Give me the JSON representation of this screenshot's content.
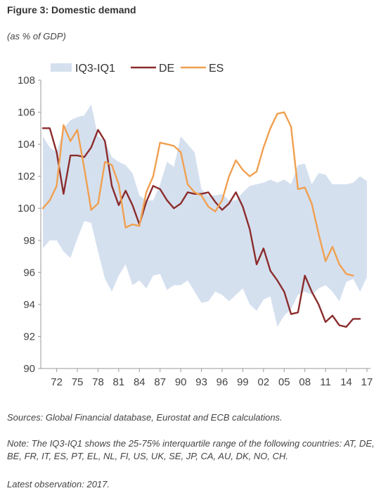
{
  "figure": {
    "title": "Figure 3: Domestic demand",
    "subtitle": "(as % of GDP)"
  },
  "notes": {
    "sources": "Sources: Global Financial database, Eurostat and ECB calculations.",
    "note": "Note: The IQ3-IQ1 shows the 25-75% interquartile range of the following countries: AT, DE, BE, FR, IT, ES, PT, EL, NL, FI, US, UK, SE, JP, CA, AU, DK, NO, CH.",
    "latest": "Latest observation: 2017."
  },
  "colors": {
    "band": "#d5e0ef",
    "de": "#8b2c2c",
    "es": "#f0a050",
    "axis": "#999999"
  },
  "chart_data": {
    "type": "line",
    "title": "",
    "xlabel": "",
    "ylabel": "",
    "ylim": [
      90,
      108
    ],
    "yticks": [
      90,
      92,
      94,
      96,
      98,
      100,
      102,
      104,
      106,
      108
    ],
    "xticks": [
      {
        "year": 1972,
        "label": "72"
      },
      {
        "year": 1975,
        "label": "75"
      },
      {
        "year": 1978,
        "label": "78"
      },
      {
        "year": 1981,
        "label": "81"
      },
      {
        "year": 1984,
        "label": "84"
      },
      {
        "year": 1987,
        "label": "87"
      },
      {
        "year": 1990,
        "label": "90"
      },
      {
        "year": 1993,
        "label": "93"
      },
      {
        "year": 1996,
        "label": "96"
      },
      {
        "year": 1999,
        "label": "99"
      },
      {
        "year": 2002,
        "label": "02"
      },
      {
        "year": 2005,
        "label": "05"
      },
      {
        "year": 2008,
        "label": "08"
      },
      {
        "year": 2011,
        "label": "11"
      },
      {
        "year": 2014,
        "label": "14"
      },
      {
        "year": 2017,
        "label": "17"
      }
    ],
    "grid": false,
    "legend": "top",
    "x": [
      1970,
      1971,
      1972,
      1973,
      1974,
      1975,
      1976,
      1977,
      1978,
      1979,
      1980,
      1981,
      1982,
      1983,
      1984,
      1985,
      1986,
      1987,
      1988,
      1989,
      1990,
      1991,
      1992,
      1993,
      1994,
      1995,
      1996,
      1997,
      1998,
      1999,
      2000,
      2001,
      2002,
      2003,
      2004,
      2005,
      2006,
      2007,
      2008,
      2009,
      2010,
      2011,
      2012,
      2013,
      2014,
      2015,
      2016,
      2017
    ],
    "band": {
      "name": "IQ3-IQ1",
      "upper": [
        104.5,
        103.8,
        103.5,
        105.0,
        105.5,
        105.7,
        105.8,
        106.5,
        104.5,
        104.2,
        103.2,
        102.9,
        102.7,
        102.2,
        100.8,
        100.5,
        100.5,
        101.5,
        102.9,
        102.6,
        104.5,
        104.0,
        103.5,
        101.2,
        100.8,
        100.8,
        100.9,
        100.5,
        100.5,
        101.0,
        101.4,
        101.5,
        101.6,
        101.8,
        101.6,
        101.8,
        101.5,
        102.7,
        102.8,
        101.5,
        102.2,
        102.1,
        101.5,
        101.5,
        101.5,
        101.6,
        102.0,
        101.7
      ],
      "lower": [
        97.5,
        98.0,
        98.0,
        97.3,
        96.9,
        98.1,
        99.2,
        99.1,
        97.3,
        95.6,
        94.8,
        95.8,
        96.5,
        95.2,
        95.5,
        95.0,
        95.8,
        95.9,
        94.9,
        95.2,
        95.2,
        95.5,
        94.8,
        94.1,
        94.2,
        94.8,
        94.6,
        94.2,
        94.6,
        95.0,
        94.0,
        93.6,
        94.3,
        94.5,
        92.6,
        93.3,
        93.7,
        94.6,
        94.8,
        94.6,
        95.0,
        95.2,
        94.8,
        94.2,
        95.4,
        95.6,
        94.8,
        95.7
      ]
    },
    "series": [
      {
        "name": "DE",
        "values": [
          105.0,
          105.0,
          103.5,
          100.9,
          103.3,
          103.3,
          103.2,
          103.8,
          104.9,
          104.2,
          101.4,
          100.2,
          101.1,
          100.2,
          99.0,
          100.4,
          101.4,
          101.2,
          100.5,
          100.0,
          100.3,
          101.0,
          100.9,
          100.9,
          101.0,
          100.4,
          99.9,
          100.3,
          101.0,
          100.1,
          98.7,
          96.5,
          97.5,
          96.1,
          95.5,
          94.8,
          93.4,
          93.5,
          95.8,
          94.8,
          94.0,
          92.9,
          93.3,
          92.7,
          92.6,
          93.1,
          93.1,
          null
        ]
      },
      {
        "name": "ES",
        "values": [
          100.0,
          100.5,
          101.4,
          105.2,
          104.2,
          104.9,
          102.5,
          99.9,
          100.3,
          102.9,
          102.7,
          101.5,
          98.8,
          99.0,
          98.9,
          101.0,
          102.0,
          104.1,
          104.0,
          103.9,
          103.5,
          101.5,
          101.0,
          100.8,
          100.1,
          99.8,
          100.5,
          102.0,
          103.0,
          102.4,
          102.0,
          102.3,
          103.8,
          105.0,
          105.9,
          106.0,
          105.1,
          101.2,
          101.3,
          100.3,
          98.4,
          96.7,
          97.6,
          96.5,
          95.9,
          95.8,
          null,
          null
        ]
      }
    ]
  }
}
